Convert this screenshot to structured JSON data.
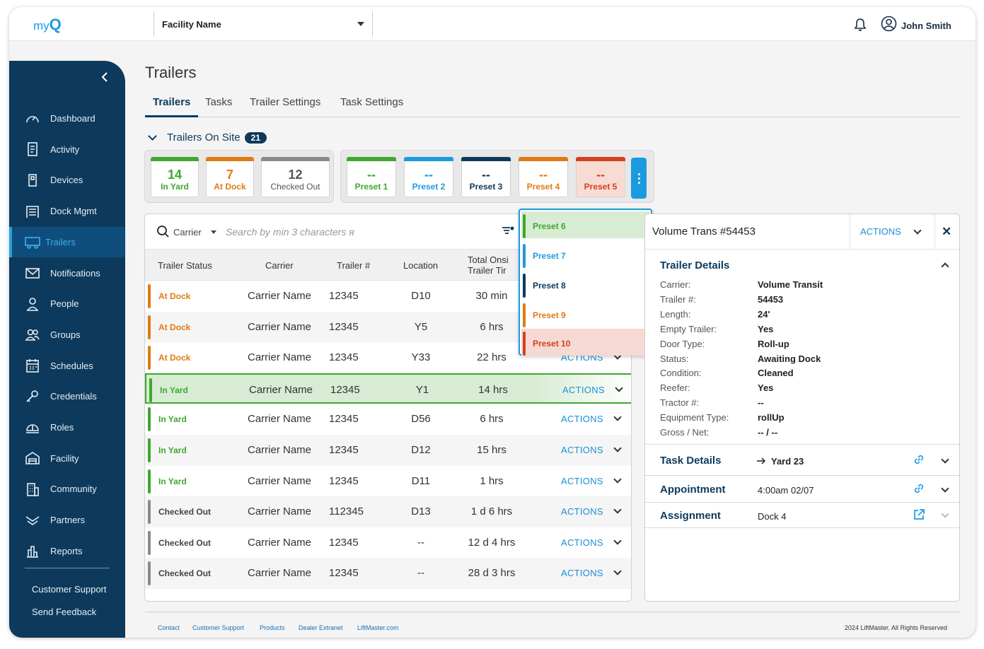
{
  "app": {
    "logo_text": "my",
    "logo_mark": "Q"
  },
  "header": {
    "facility": "Facility Name",
    "user_name": "John Smith"
  },
  "sidebar": {
    "items": [
      {
        "label": "Dashboard",
        "icon": "gauge-icon"
      },
      {
        "label": "Activity",
        "icon": "document-icon"
      },
      {
        "label": "Devices",
        "icon": "device-icon"
      },
      {
        "label": "Dock Mgmt",
        "icon": "dock-icon"
      },
      {
        "label": "Trailers",
        "icon": "trailer-icon",
        "active": true
      },
      {
        "label": "Notifications",
        "icon": "envelope-icon"
      },
      {
        "label": "People",
        "icon": "person-icon"
      },
      {
        "label": "Groups",
        "icon": "group-icon"
      },
      {
        "label": "Schedules",
        "icon": "calendar-icon"
      },
      {
        "label": "Credentials",
        "icon": "key-icon"
      },
      {
        "label": "Roles",
        "icon": "helmet-icon"
      },
      {
        "label": "Facility",
        "icon": "warehouse-icon"
      },
      {
        "label": "Community",
        "icon": "building-icon"
      },
      {
        "label": "Partners",
        "icon": "handshake-icon"
      },
      {
        "label": "Reports",
        "icon": "bar-chart-icon"
      }
    ],
    "links": [
      "Customer Support",
      "Send Feedback"
    ]
  },
  "page": {
    "title": "Trailers",
    "tabs": [
      "Trailers",
      "Tasks",
      "Trailer Settings",
      "Task Settings"
    ],
    "onsite_label": "Trailers On Site",
    "onsite_count": "21"
  },
  "status_cards": [
    {
      "num": "14",
      "label": "In Yard",
      "color": "#3fa72e"
    },
    {
      "num": "7",
      "label": "At Dock",
      "color": "#e07b12"
    },
    {
      "num": "12",
      "label": "Checked Out",
      "color": "#8a8a8a"
    }
  ],
  "preset_cards": [
    {
      "num": "--",
      "label": "Preset 1",
      "color": "#3fa72e"
    },
    {
      "num": "--",
      "label": "Preset 2",
      "color": "#1a9be0"
    },
    {
      "num": "--",
      "label": "Preset 3",
      "color": "#0d3a5c"
    },
    {
      "num": "--",
      "label": "Preset 4",
      "color": "#e07b12"
    },
    {
      "num": "--",
      "label": "Preset 5",
      "color": "#d2401f"
    }
  ],
  "search": {
    "filter_label": "Carrier",
    "placeholder": "Search by min 3 characters я"
  },
  "table": {
    "headers": {
      "status": "Trailer Status",
      "carrier": "Carrier",
      "trailer": "Trailer #",
      "location": "Location",
      "time_1": "Total Onsi",
      "time_2": "Trailer Tir"
    },
    "rows": [
      {
        "status": "At Dock",
        "color": "#e07b12",
        "carrier": "Carrier Name",
        "trailer": "12345",
        "location": "D10",
        "time": "30 min",
        "action": ""
      },
      {
        "status": "At Dock",
        "color": "#e07b12",
        "carrier": "Carrier Name",
        "trailer": "12345",
        "location": "Y5",
        "time": "6 hrs",
        "action": ""
      },
      {
        "status": "At Dock",
        "color": "#e07b12",
        "carrier": "Carrier Name",
        "trailer": "12345",
        "location": "Y33",
        "time": "22 hrs",
        "action": "ACTIONS"
      },
      {
        "status": "In Yard",
        "color": "#3fa72e",
        "carrier": "Carrier Name",
        "trailer": "12345",
        "location": "Y1",
        "time": "14 hrs",
        "action": "ACTIONS"
      },
      {
        "status": "In Yard",
        "color": "#3fa72e",
        "carrier": "Carrier Name",
        "trailer": "12345",
        "location": "D56",
        "time": "6 hrs",
        "action": "ACTIONS"
      },
      {
        "status": "In Yard",
        "color": "#3fa72e",
        "carrier": "Carrier Name",
        "trailer": "12345",
        "location": "D12",
        "time": "15 hrs",
        "action": "ACTIONS"
      },
      {
        "status": "In Yard",
        "color": "#3fa72e",
        "carrier": "Carrier Name",
        "trailer": "12345",
        "location": "D11",
        "time": "1 hrs",
        "action": "ACTIONS"
      },
      {
        "status": "Checked Out",
        "color": "#8a8a8a",
        "carrier": "Carrier Name",
        "trailer": "112345",
        "location": "D13",
        "time": "1 d 6 hrs",
        "action": "ACTIONS"
      },
      {
        "status": "Checked Out",
        "color": "#8a8a8a",
        "carrier": "Carrier Name",
        "trailer": "12345",
        "location": "--",
        "time": "12 d 4 hrs",
        "action": "ACTIONS"
      },
      {
        "status": "Checked Out",
        "color": "#8a8a8a",
        "carrier": "Carrier Name",
        "trailer": "12345",
        "location": "--",
        "time": "28 d  3 hrs",
        "action": "ACTIONS"
      }
    ]
  },
  "preset_menu": [
    {
      "label": "Preset 6",
      "color": "#3fa72e",
      "bg": "#d8ecd4"
    },
    {
      "label": "Preset 7",
      "color": "#1a9be0",
      "bg": "#ffffff"
    },
    {
      "label": "Preset 8",
      "color": "#0d3a5c",
      "bg": "#ffffff"
    },
    {
      "label": "Preset 9",
      "color": "#e07b12",
      "bg": "#ffffff"
    },
    {
      "label": "Preset 10",
      "color": "#d2401f",
      "bg": "#f6d9d2"
    }
  ],
  "details": {
    "title": "Volume Trans #54453",
    "actions_label": "ACTIONS",
    "section_title": "Trailer Details",
    "fields": [
      {
        "k": "Carrier:",
        "v": "Volume Transit"
      },
      {
        "k": "Trailer #:",
        "v": "54453"
      },
      {
        "k": "Length:",
        "v": "24'"
      },
      {
        "k": "Empty Trailer:",
        "v": "Yes"
      },
      {
        "k": "Door Type:",
        "v": "Roll-up"
      },
      {
        "k": "Status:",
        "v": "Awaiting Dock"
      },
      {
        "k": "Condition:",
        "v": "Cleaned"
      },
      {
        "k": "Reefer:",
        "v": "Yes"
      },
      {
        "k": "Tractor #:",
        "v": "--"
      },
      {
        "k": "Equipment Type:",
        "v": "rollUp"
      },
      {
        "k": "Gross / Net:",
        "v": "-- / --"
      }
    ],
    "task_title": "Task Details",
    "task_value": "Yard 23",
    "appointment_title": "Appointment",
    "appointment_value": "4:00am 02/07",
    "assignment_title": "Assignment",
    "assignment_value": "Dock 4"
  },
  "footer": {
    "links": [
      "Contact",
      "Customer Support",
      "Products",
      "Dealer Extranet",
      "LiftMaster.com"
    ],
    "copyright": "2024 LiftMaster. All Rights Reserved"
  }
}
